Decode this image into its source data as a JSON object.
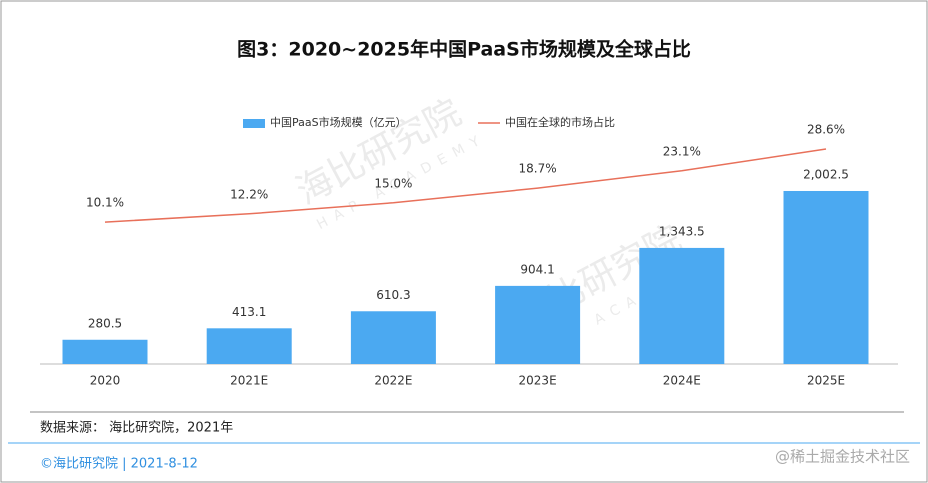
{
  "chart_data": {
    "type": "bar",
    "title": "图3：2020~2025年中国PaaS市场规模及全球占比",
    "categories": [
      "2020",
      "2021E",
      "2022E",
      "2023E",
      "2024E",
      "2025E"
    ],
    "series": [
      {
        "name": "中国PaaS市场规模（亿元）",
        "type": "bar",
        "color": "#4ba9f1",
        "values": [
          280.5,
          413.1,
          610.3,
          904.1,
          1343.5,
          2002.5
        ],
        "value_labels": [
          "280.5",
          "413.1",
          "610.3",
          "904.1",
          "1,343.5",
          "2,002.5"
        ]
      },
      {
        "name": "中国在全球的市场占比",
        "type": "line",
        "axis": "y2",
        "color": "#e8705a",
        "values": [
          10.1,
          12.2,
          15.0,
          18.7,
          23.1,
          28.6
        ],
        "value_labels": [
          "10.1%",
          "12.2%",
          "15.0%",
          "18.7%",
          "23.1%",
          "28.6%"
        ]
      }
    ]
  },
  "source": "数据来源： 海比研究院，2021年",
  "footer": "©海比研究院 | 2021-8-12",
  "watermark": {
    "name": "海比研究院",
    "sub": "HAP ACADEMY"
  },
  "platform_watermark": "@稀土掘金技术社区"
}
